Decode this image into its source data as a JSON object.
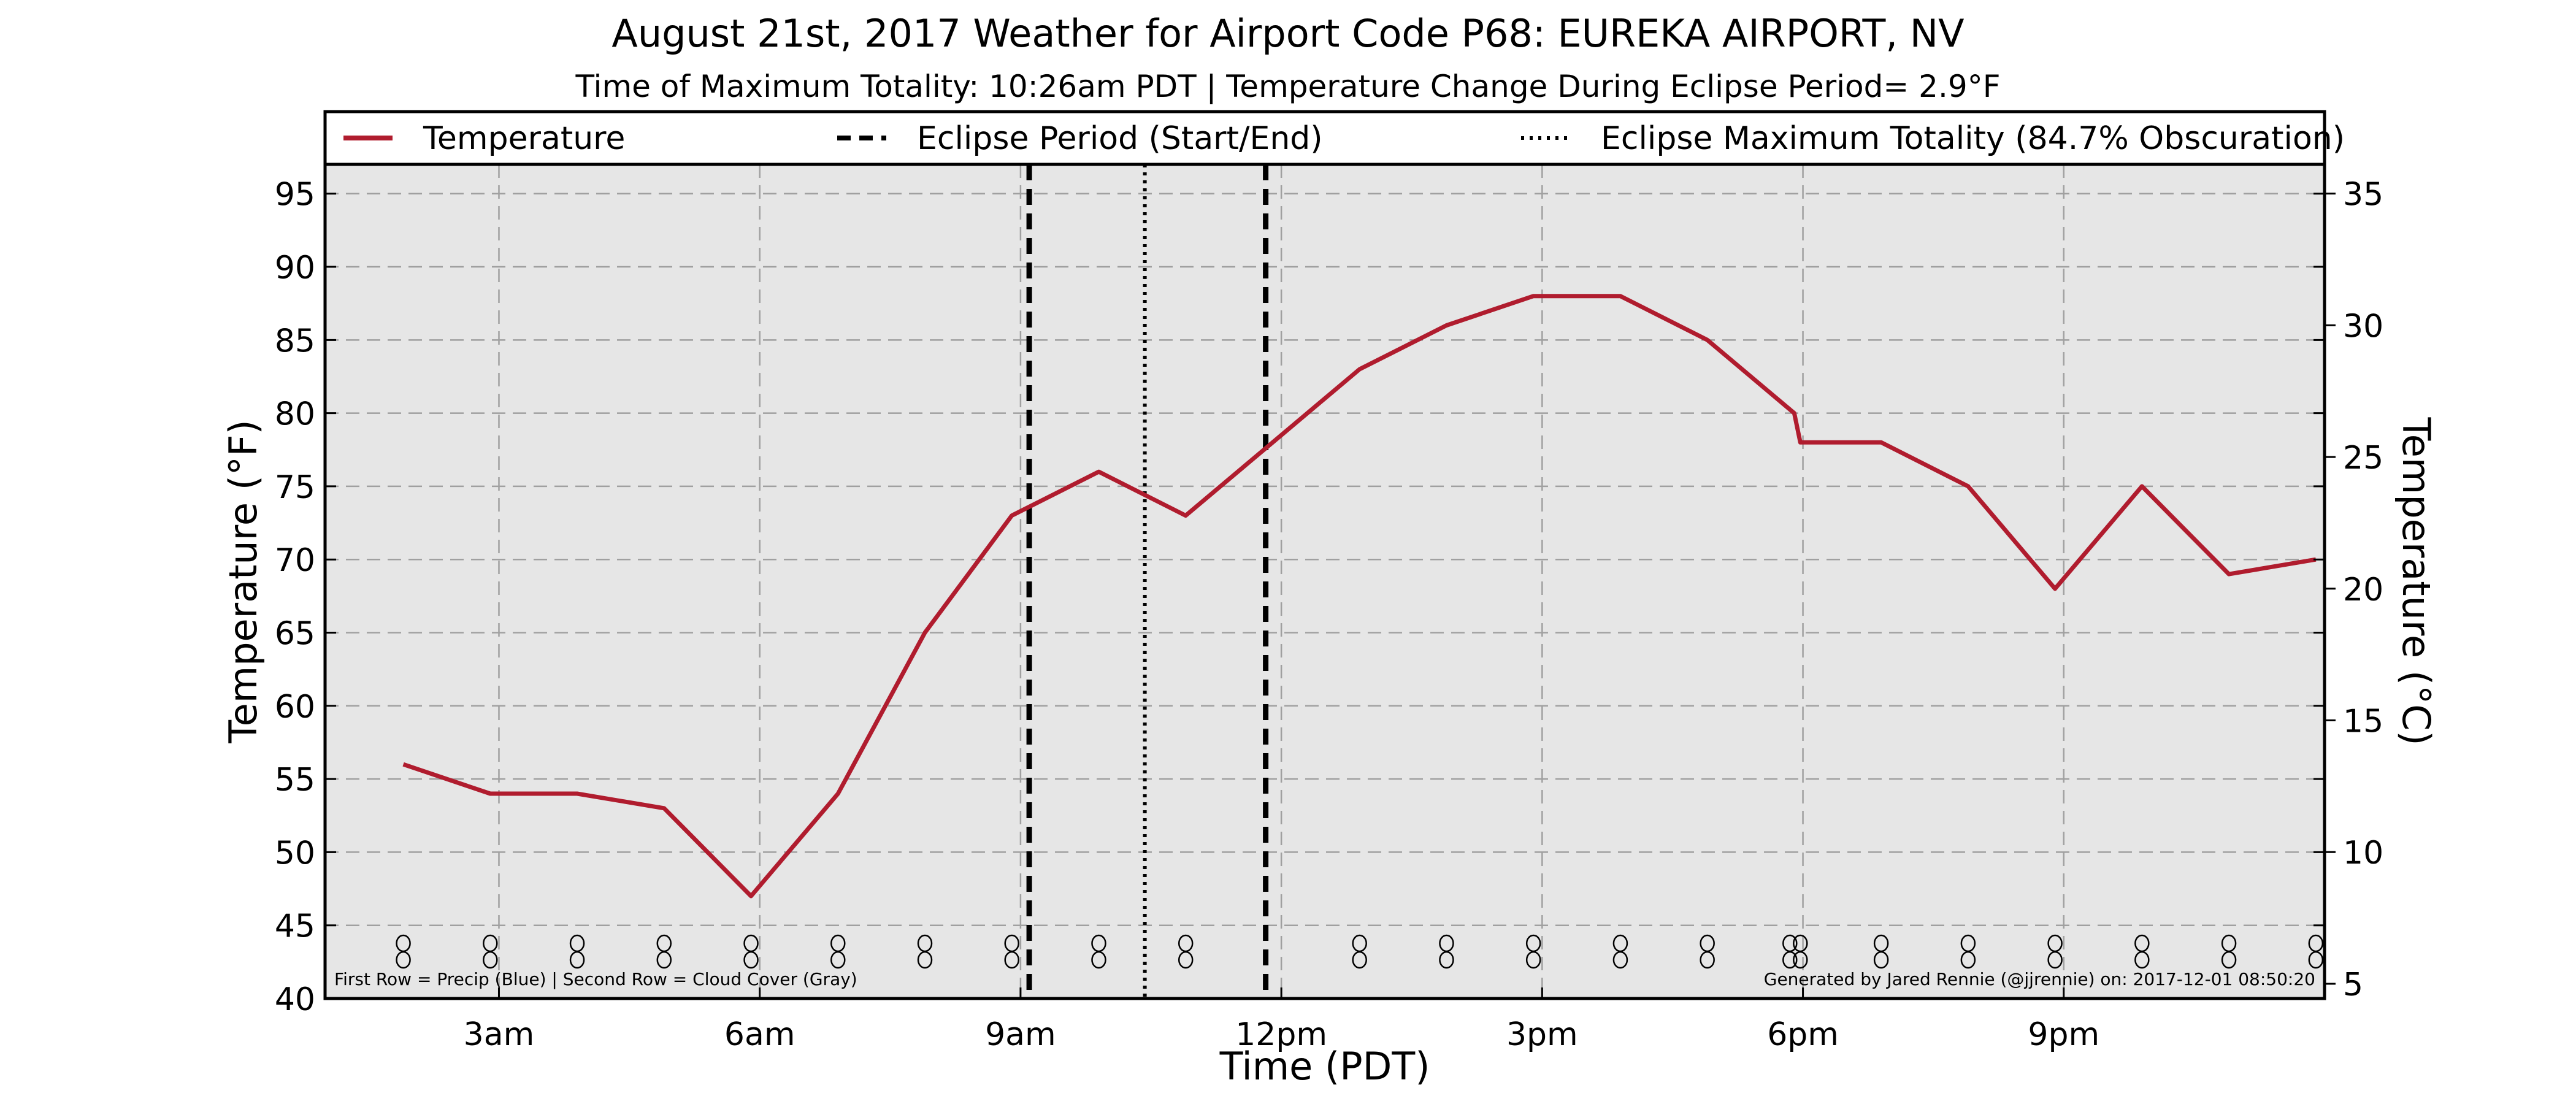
{
  "chart_data": {
    "type": "line",
    "title": "August 21st, 2017 Weather for Airport Code P68: EUREKA AIRPORT, NV",
    "subtitle": "Time of Maximum Totality: 10:26am PDT | Temperature Change During Eclipse Period= 2.9°F",
    "xlabel": "Time (PDT)",
    "ylabel": "Temperature (°F)",
    "ylabel_right": "Temperature (°C)",
    "xlim": [
      1.0,
      24.0
    ],
    "ylim": [
      40,
      97
    ],
    "ylim_right": [
      4.44,
      36.11
    ],
    "x_ticks": [
      {
        "x": 3,
        "label": "3am"
      },
      {
        "x": 6,
        "label": "6am"
      },
      {
        "x": 9,
        "label": "9am"
      },
      {
        "x": 12,
        "label": "12pm"
      },
      {
        "x": 15,
        "label": "3pm"
      },
      {
        "x": 18,
        "label": "6pm"
      },
      {
        "x": 21,
        "label": "9pm"
      }
    ],
    "y_ticks": [
      40,
      45,
      50,
      55,
      60,
      65,
      70,
      75,
      80,
      85,
      90,
      95
    ],
    "y_ticks_right": [
      5,
      10,
      15,
      20,
      25,
      30,
      35
    ],
    "grid": true,
    "legend_position": "top",
    "legend": [
      {
        "label": "Temperature",
        "style": "solid",
        "color": "#b01c2e"
      },
      {
        "label": "Eclipse Period (Start/End)",
        "style": "dashed",
        "color": "#000000"
      },
      {
        "label": "Eclipse Maximum Totality (84.7% Obscuration)",
        "style": "dotted",
        "color": "#000000"
      }
    ],
    "series": [
      {
        "name": "Temperature",
        "color": "#b01c2e",
        "points": [
          [
            1.9,
            56
          ],
          [
            2.9,
            54
          ],
          [
            3.9,
            54
          ],
          [
            4.9,
            53
          ],
          [
            5.9,
            47
          ],
          [
            6.9,
            54
          ],
          [
            7.9,
            65
          ],
          [
            8.9,
            73
          ],
          [
            9.9,
            76
          ],
          [
            10.9,
            73
          ],
          [
            11.9,
            78
          ],
          [
            12.9,
            83
          ],
          [
            13.9,
            86
          ],
          [
            14.9,
            88
          ],
          [
            15.9,
            88
          ],
          [
            16.9,
            85
          ],
          [
            17.9,
            80
          ],
          [
            17.97,
            78
          ],
          [
            18.9,
            78
          ],
          [
            19.9,
            75
          ],
          [
            20.9,
            68
          ],
          [
            21.9,
            75
          ],
          [
            22.9,
            69
          ],
          [
            23.9,
            70
          ]
        ]
      }
    ],
    "eclipse_start": 9.1,
    "eclipse_end": 11.82,
    "eclipse_max": 10.43,
    "station_symbols": {
      "glyph": "o",
      "x": [
        1.9,
        2.9,
        3.9,
        4.9,
        5.9,
        6.9,
        7.9,
        8.9,
        9.9,
        10.9,
        12.9,
        13.9,
        14.9,
        15.9,
        16.9,
        17.85,
        17.97,
        18.9,
        19.9,
        20.9,
        21.9,
        22.9,
        23.9
      ]
    },
    "footnote_left": "First Row = Precip (Blue) | Second Row = Cloud Cover (Gray)",
    "footnote_right": "Generated by Jared Rennie (@jjrennie) on: 2017-12-01 08:50:20",
    "colors": {
      "plot_background": "#e6e6e6",
      "temperature_line": "#b01c2e",
      "grid": "#a0a0a0"
    }
  }
}
